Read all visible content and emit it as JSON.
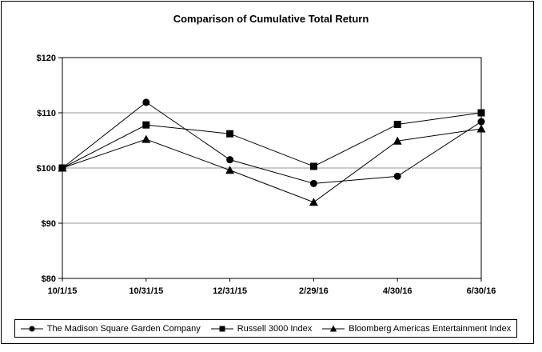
{
  "chart_data": {
    "type": "line",
    "title": "Comparison of Cumulative Total Return",
    "categories": [
      "10/1/15",
      "10/31/15",
      "12/31/15",
      "2/29/16",
      "4/30/16",
      "6/30/16"
    ],
    "series": [
      {
        "name": "The Madison Square Garden Company",
        "marker": "circle",
        "values": [
          100,
          111.9,
          101.5,
          97.2,
          98.5,
          108.4
        ]
      },
      {
        "name": "Russell 3000 Index",
        "marker": "square",
        "values": [
          100,
          107.8,
          106.2,
          100.3,
          107.9,
          110.0
        ]
      },
      {
        "name": "Bloomberg Americas Entertainment Index",
        "marker": "triangle",
        "values": [
          100,
          105.2,
          99.6,
          93.8,
          104.9,
          107.1
        ]
      }
    ],
    "ylim": [
      80,
      120
    ],
    "y_ticks": [
      80,
      90,
      100,
      110,
      120
    ],
    "y_tick_labels": [
      "$80",
      "$90",
      "$100",
      "$110",
      "$120"
    ],
    "gridlines": [
      90,
      100,
      110
    ],
    "legend_position": "bottom",
    "grid_on": true,
    "colors": {
      "line": "#000000",
      "grid": "#999999",
      "text": "#000000",
      "background": "#ffffff"
    }
  }
}
